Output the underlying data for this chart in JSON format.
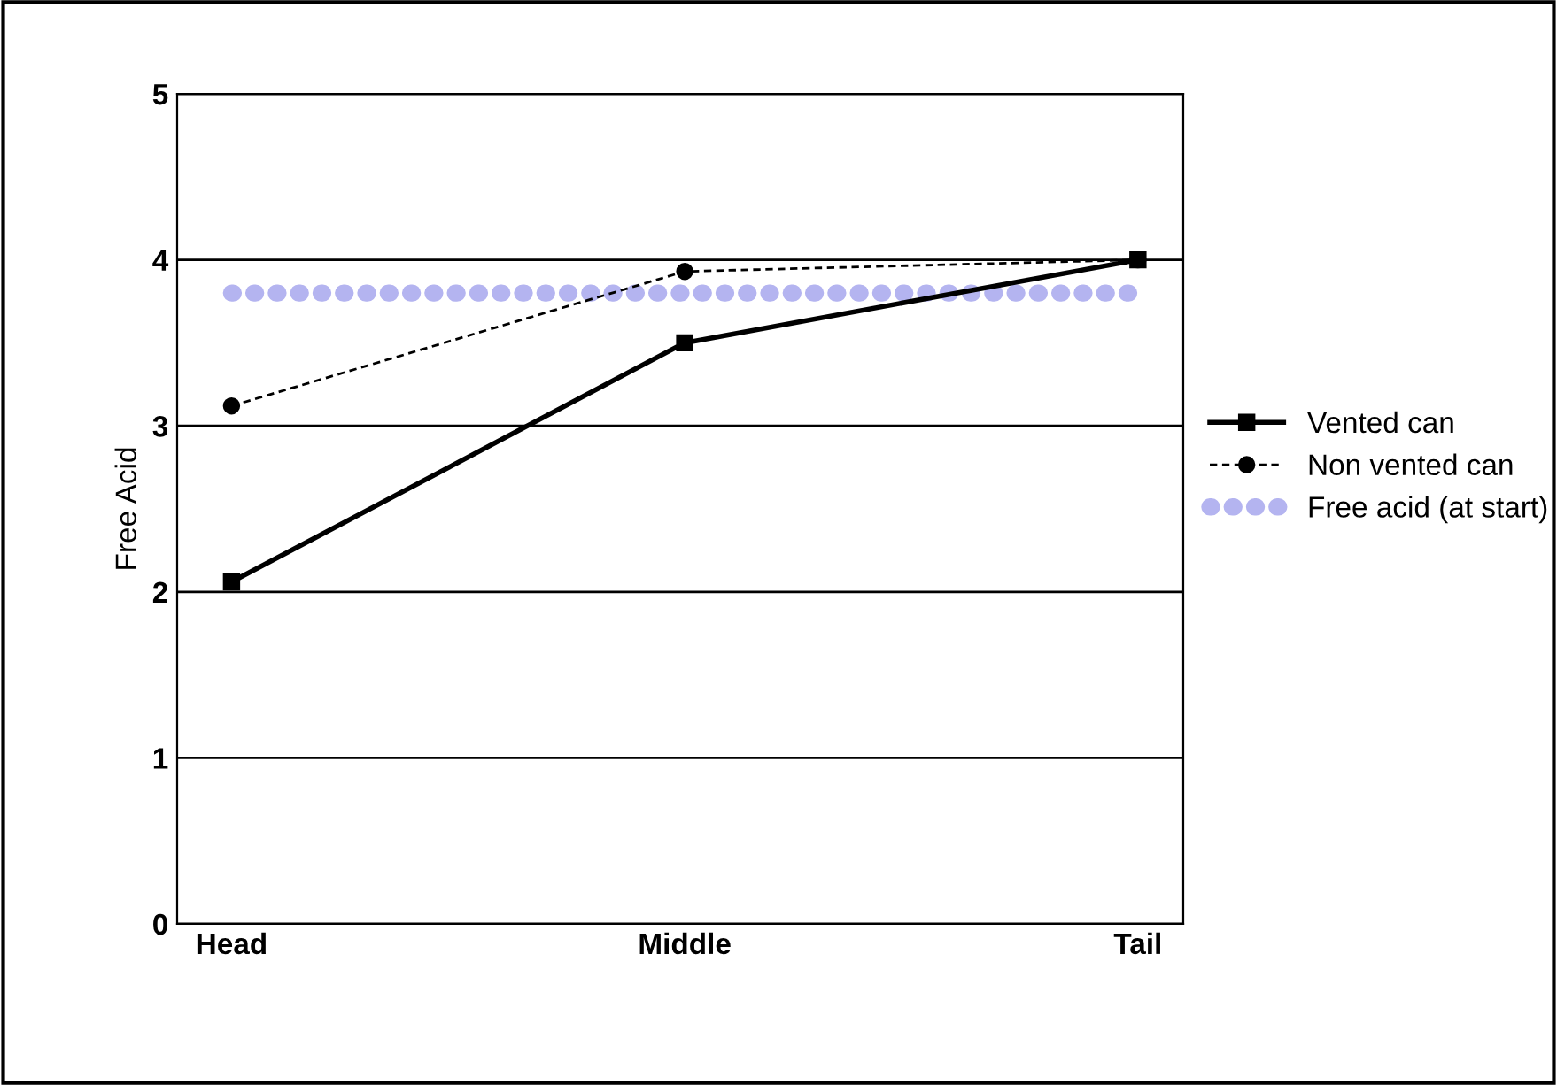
{
  "chart_data": {
    "type": "line",
    "ylabel": "Free Acid",
    "categories": [
      "Head",
      "Middle",
      "Tail"
    ],
    "series": [
      {
        "name": "Vented can",
        "color": "#000000",
        "values": [
          2.06,
          3.5,
          4.0
        ],
        "marker": "square",
        "line_style": "solid"
      },
      {
        "name": "Non vented can",
        "color": "#000000",
        "values": [
          3.12,
          3.93,
          4.0
        ],
        "marker": "circle",
        "line_style": "dashed"
      },
      {
        "name": "Free acid (at start)",
        "color": "#b4b4f0",
        "values": [
          3.8,
          3.8,
          3.8
        ],
        "marker": "none",
        "line_style": "dotted"
      }
    ],
    "ylim": [
      0,
      5
    ],
    "yticks": [
      0,
      1,
      2,
      3,
      4,
      5
    ],
    "grid": "y",
    "legend": "right"
  }
}
